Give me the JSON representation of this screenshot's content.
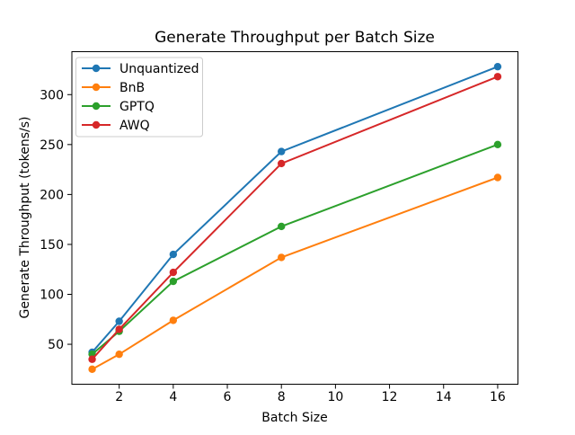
{
  "chart_data": {
    "type": "line",
    "title": "Generate Throughput per Batch Size",
    "xlabel": "Batch Size",
    "ylabel": "Generate Throughput (tokens/s)",
    "x": [
      1,
      2,
      4,
      8,
      16
    ],
    "series": [
      {
        "name": "Unquantized",
        "color": "#1f77b4",
        "values": [
          42,
          73,
          140,
          243,
          328
        ]
      },
      {
        "name": "BnB",
        "color": "#ff7f0e",
        "values": [
          25,
          40,
          74,
          137,
          217
        ]
      },
      {
        "name": "GPTQ",
        "color": "#2ca02c",
        "values": [
          40,
          63,
          113,
          168,
          250
        ]
      },
      {
        "name": "AWQ",
        "color": "#d62728",
        "values": [
          35,
          65,
          122,
          231,
          318
        ]
      }
    ],
    "xlim": [
      0.25,
      16.75
    ],
    "ylim": [
      10,
      343
    ],
    "xticks": [
      2,
      4,
      6,
      8,
      10,
      12,
      14,
      16
    ],
    "yticks": [
      50,
      100,
      150,
      200,
      250,
      300
    ],
    "grid": false,
    "marker": "circle",
    "legend": {
      "position": "upper left",
      "entries": [
        "Unquantized",
        "BnB",
        "GPTQ",
        "AWQ"
      ]
    },
    "colors": {
      "spine": "#000000",
      "tick": "#000000",
      "text": "#000000",
      "legend_border": "#cccccc",
      "background": "#ffffff"
    }
  }
}
